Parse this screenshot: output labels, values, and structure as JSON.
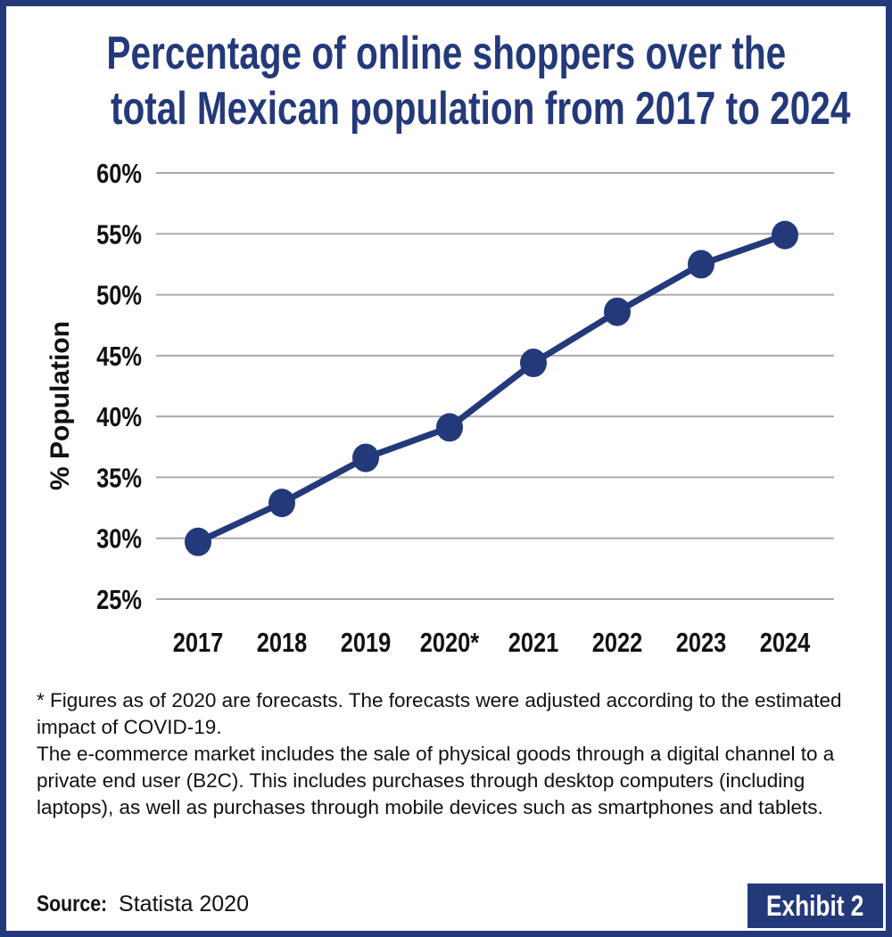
{
  "chart_data": {
    "type": "line",
    "title": "Percentage of online shoppers over the total Mexican population from 2017 to 2024",
    "title_lines": [
      "Percentage of online shoppers over the",
      "total Mexican population from 2017 to 2024"
    ],
    "categories": [
      "2017",
      "2018",
      "2019",
      "2020*",
      "2021",
      "2022",
      "2023",
      "2024"
    ],
    "values": [
      29.7,
      32.9,
      36.6,
      39.1,
      44.4,
      48.6,
      52.5,
      54.9
    ],
    "ylabel": "% Population",
    "xlabel": "",
    "ylim": [
      25,
      60
    ],
    "yticks": [
      "25%",
      "30%",
      "35%",
      "40%",
      "45%",
      "50%",
      "55%",
      "60%"
    ],
    "grid": true,
    "series_color": "#24397a",
    "grid_color": "#aaaaaa"
  },
  "notes": [
    "* Figures as of 2020 are forecasts. The forecasts were adjusted according to the estimated impact of COVID-19.",
    "The e-commerce market includes the sale of physical goods through a digital channel to a private end user (B2C). This includes purchases through desktop computers (including laptops), as well as purchases through mobile devices such as smartphones and tablets."
  ],
  "source": {
    "label": "Source:",
    "value": "Statista 2020"
  },
  "exhibit": "Exhibit 2",
  "colors": {
    "brand": "#24397a"
  }
}
